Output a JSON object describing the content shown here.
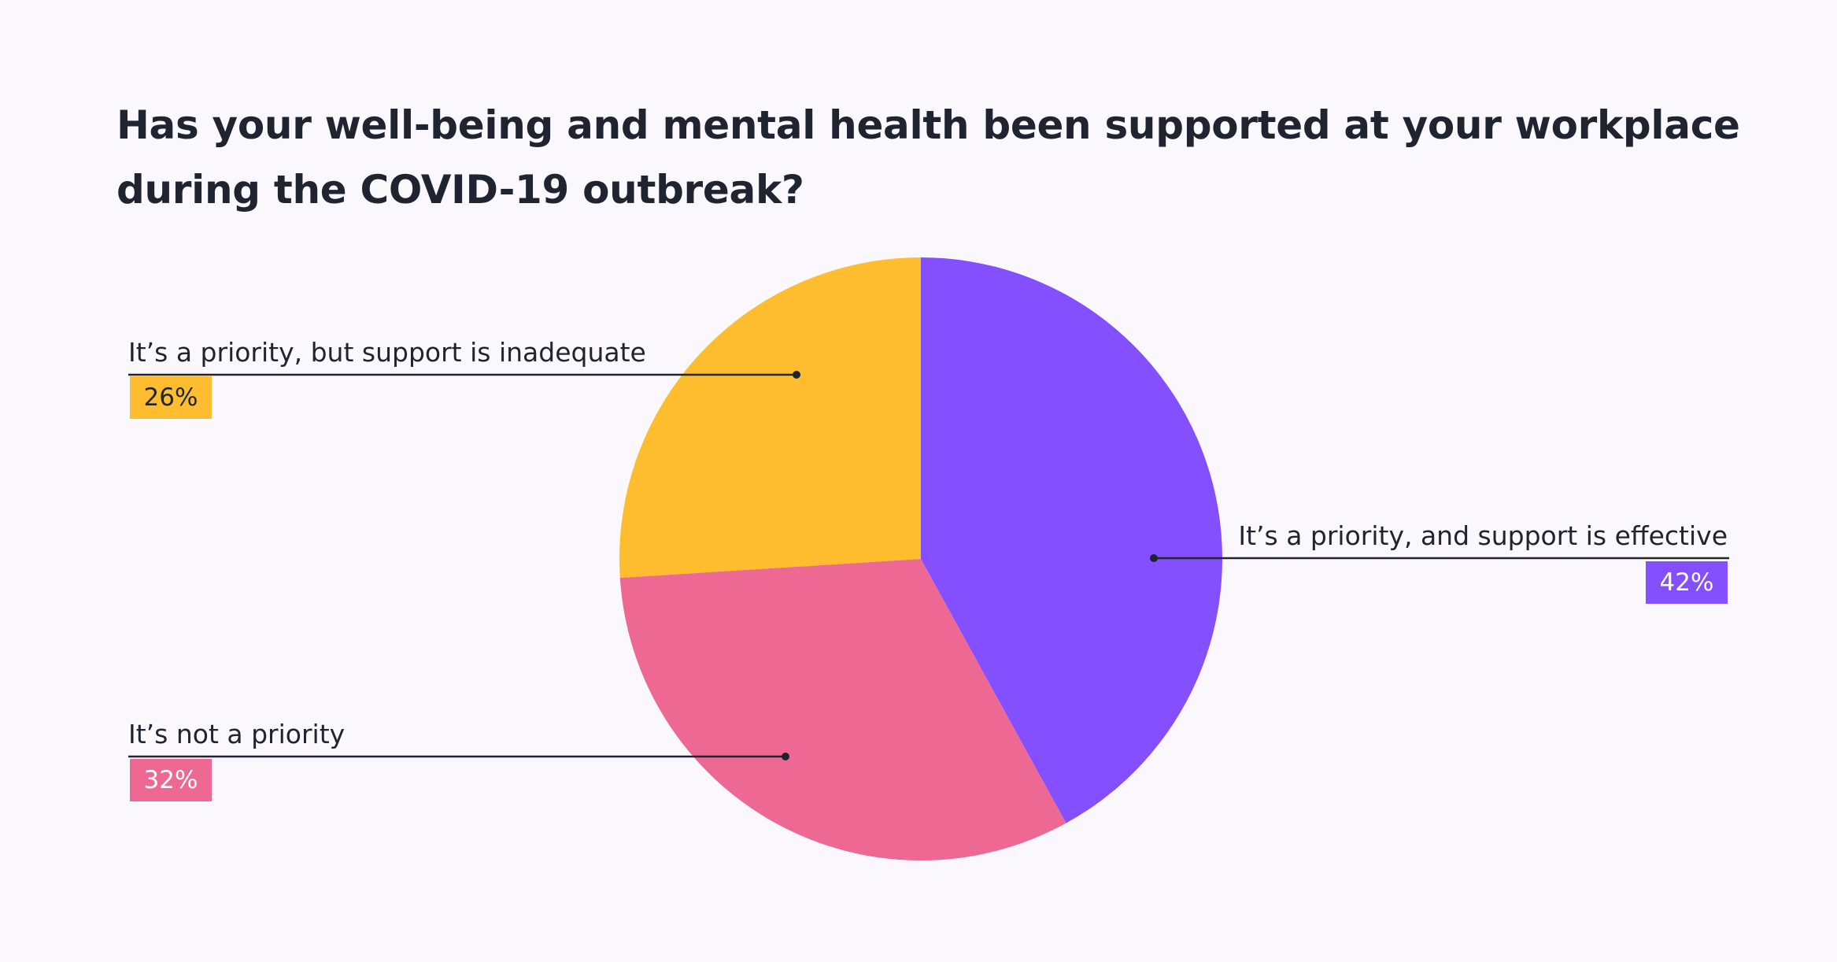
{
  "colors": {
    "effective": "#834FFF",
    "not_priority": "#ED6893",
    "inadequate": "#FDBD2E",
    "leader": "#1F2430",
    "badge_text_light": "#FFFFFF",
    "badge_text_dark": "#1F2430"
  },
  "chart_data": {
    "type": "pie",
    "title": "Has your well-being and mental health been supported at your workplace during the COVID-19 outbreak?",
    "slices": [
      {
        "label": "It’s a priority, and support is effective",
        "value": 42,
        "value_label": "42%",
        "color": "#834FFF"
      },
      {
        "label": "It’s not a priority",
        "value": 32,
        "value_label": "32%",
        "color": "#ED6893"
      },
      {
        "label": "It’s a priority, but support is inadequate",
        "value": 26,
        "value_label": "26%",
        "color": "#FDBD2E"
      }
    ]
  }
}
